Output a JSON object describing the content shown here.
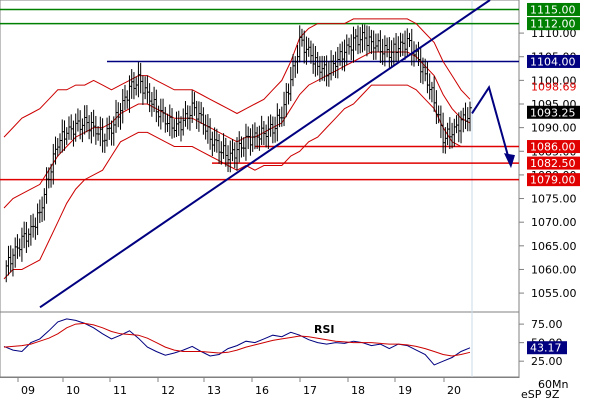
{
  "chart_data": {
    "type": "line",
    "timeframe_label": "60Mn",
    "symbol_label": "eSP 9Z",
    "price_axis": {
      "ylim": [
        1051,
        1117
      ],
      "ticks": [
        1055.0,
        1060.0,
        1065.0,
        1070.0,
        1075.0,
        1080.0,
        1085.0,
        1090.0,
        1095.0,
        1100.0,
        1105.0,
        1110.0
      ]
    },
    "time_axis": {
      "categories": [
        "09",
        "10",
        "11",
        "12",
        "13",
        "16",
        "17",
        "18",
        "19",
        "20"
      ]
    },
    "last_price": 1093.25,
    "levels": [
      {
        "value": 1115.0,
        "label": "1115.00",
        "color": "#008000"
      },
      {
        "value": 1112.0,
        "label": "1112.00",
        "color": "#008000"
      },
      {
        "value": 1104.0,
        "label": "1104.00",
        "color": "#000080"
      },
      {
        "value": 1098.69,
        "label": "1098.69",
        "color": "#e00000"
      },
      {
        "value": 1086.0,
        "label": "1086.00",
        "color": "#e00000"
      },
      {
        "value": 1082.5,
        "label": "1082.50",
        "color": "#e00000"
      },
      {
        "value": 1079.0,
        "label": "1079.00",
        "color": "#e00000"
      }
    ],
    "trendline": {
      "start": {
        "day": "09",
        "value": 1052
      },
      "end": {
        "day": "20",
        "value": 1117
      },
      "color": "#000080"
    },
    "projection": {
      "points": [
        1093,
        1098.5,
        1082.5
      ],
      "color": "#000080"
    },
    "series": [
      {
        "values": [
          1060,
          1063,
          1066,
          1068,
          1072,
          1080,
          1087,
          1089,
          1090,
          1091,
          1090,
          1088,
          1090,
          1094,
          1098,
          1100,
          1097,
          1094,
          1092,
          1090,
          1091,
          1094,
          1092,
          1088,
          1086,
          1084,
          1085,
          1087,
          1088,
          1089,
          1090,
          1093,
          1100,
          1108,
          1106,
          1103,
          1102,
          1104,
          1106,
          1108,
          1109,
          1108,
          1107,
          1106,
          1107,
          1108,
          1105,
          1101,
          1096,
          1088,
          1089,
          1091,
          1093
        ]
      },
      {
        "values": [
          1073,
          1075,
          1076,
          1077,
          1078,
          1081,
          1084,
          1086,
          1088,
          1089,
          1090,
          1090,
          1091,
          1093,
          1094,
          1095,
          1095,
          1094,
          1093,
          1092,
          1092,
          1092,
          1091,
          1090,
          1089,
          1088,
          1087,
          1088,
          1088,
          1089,
          1090,
          1091,
          1094,
          1097,
          1099,
          1100,
          1101,
          1102,
          1103,
          1104,
          1105,
          1106,
          1106,
          1106,
          1106,
          1106,
          1105,
          1103,
          1101,
          1097,
          1094,
          1092,
          1091
        ]
      },
      {
        "values": [
          1088,
          1090,
          1092,
          1093,
          1094,
          1096,
          1098,
          1098,
          1099,
          1099,
          1100,
          1099,
          1098,
          1099,
          1100,
          1101,
          1101,
          1100,
          1099,
          1098,
          1098,
          1098,
          1097,
          1096,
          1095,
          1094,
          1093,
          1094,
          1095,
          1096,
          1098,
          1100,
          1104,
          1109,
          1111,
          1112,
          1112,
          1112,
          1112,
          1113,
          1113,
          1113,
          1113,
          1113,
          1113,
          1113,
          1112,
          1110,
          1108,
          1104,
          1101,
          1098,
          1096
        ]
      },
      {
        "values": [
          1058,
          1060,
          1060,
          1061,
          1062,
          1066,
          1070,
          1074,
          1077,
          1079,
          1080,
          1081,
          1084,
          1087,
          1088,
          1089,
          1089,
          1088,
          1087,
          1086,
          1086,
          1086,
          1085,
          1084,
          1083,
          1082,
          1081,
          1082,
          1081,
          1082,
          1082,
          1082,
          1084,
          1085,
          1087,
          1088,
          1090,
          1092,
          1094,
          1095,
          1097,
          1099,
          1099,
          1099,
          1099,
          1099,
          1098,
          1096,
          1094,
          1090,
          1087,
          1086,
          1086
        ]
      }
    ],
    "rsi": {
      "label": "RSI",
      "ticks": [
        25.0,
        50.0,
        75.0
      ],
      "ylim": [
        5,
        90
      ],
      "value": 43.17,
      "value_label": "43.17",
      "series": [
        {
          "values": [
            45,
            40,
            38,
            50,
            55,
            66,
            78,
            82,
            80,
            76,
            70,
            62,
            55,
            60,
            66,
            56,
            44,
            38,
            33,
            36,
            40,
            45,
            38,
            32,
            34,
            42,
            46,
            52,
            50,
            55,
            60,
            58,
            64,
            60,
            54,
            50,
            48,
            50,
            49,
            52,
            50,
            46,
            48,
            42,
            48,
            46,
            40,
            34,
            20,
            25,
            30,
            38,
            43
          ]
        },
        {
          "values": [
            44,
            45,
            46,
            48,
            52,
            56,
            62,
            70,
            75,
            76,
            74,
            70,
            65,
            62,
            61,
            60,
            56,
            50,
            44,
            40,
            38,
            38,
            38,
            37,
            36,
            37,
            40,
            44,
            47,
            50,
            53,
            55,
            57,
            59,
            58,
            56,
            54,
            52,
            51,
            50,
            50,
            50,
            49,
            48,
            48,
            47,
            45,
            42,
            38,
            34,
            32,
            34,
            37
          ]
        }
      ]
    }
  }
}
